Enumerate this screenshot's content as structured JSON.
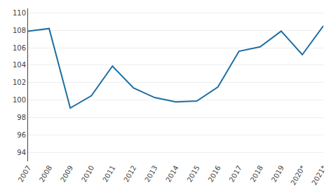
{
  "chart_data": {
    "type": "line",
    "categories": [
      "2007",
      "2008",
      "2009",
      "2010",
      "2011",
      "2012",
      "2013",
      "2014",
      "2015",
      "2016",
      "2017",
      "2018",
      "2019",
      "2020*",
      "2021*"
    ],
    "values": [
      107.9,
      108.2,
      99.1,
      100.5,
      103.9,
      101.4,
      100.3,
      99.8,
      99.9,
      101.5,
      105.6,
      106.1,
      107.9,
      105.2,
      108.5
    ],
    "color": "#1c6ea4",
    "ylim": [
      93.0,
      110.5
    ],
    "yticks": [
      94,
      96,
      98,
      100,
      102,
      104,
      106,
      108,
      110
    ],
    "grid": true
  }
}
